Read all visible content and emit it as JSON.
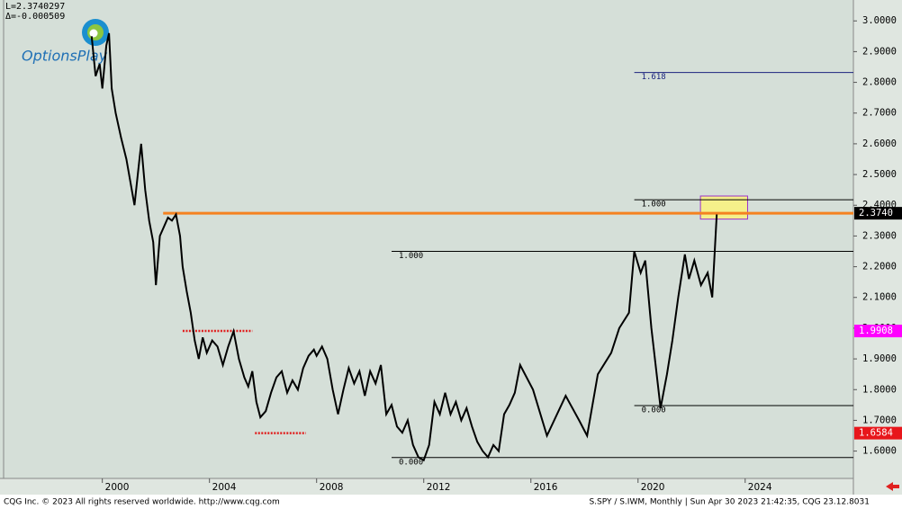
{
  "chart_data": {
    "type": "line",
    "cursor_info": [
      "L=2.3740297",
      "Δ=-0.000509"
    ],
    "logo": "OptionsPlay",
    "copyright": "CQG Inc. © 2023 All rights reserved worldwide. http://www.cqg.com",
    "status": "S.SPY / S.IWM, Monthly | Sun Apr 30 2023 21:42:35, CQG 23.12.8031",
    "color": "#000000",
    "x": [
      1999.6,
      1999.75,
      1999.9,
      2000.0,
      2000.15,
      2000.25,
      2000.35,
      2000.5,
      2000.7,
      2000.9,
      2001.1,
      2001.2,
      2001.35,
      2001.45,
      2001.6,
      2001.75,
      2001.9,
      2002.0,
      2002.15,
      2002.3,
      2002.45,
      2002.6,
      2002.75,
      2002.9,
      2003.0,
      2003.15,
      2003.3,
      2003.45,
      2003.6,
      2003.75,
      2003.9,
      2004.1,
      2004.3,
      2004.5,
      2004.7,
      2004.9,
      2005.1,
      2005.3,
      2005.45,
      2005.6,
      2005.75,
      2005.9,
      2006.1,
      2006.3,
      2006.5,
      2006.7,
      2006.9,
      2007.1,
      2007.3,
      2007.5,
      2007.7,
      2007.9,
      2008.0,
      2008.2,
      2008.4,
      2008.6,
      2008.8,
      2009.0,
      2009.2,
      2009.4,
      2009.6,
      2009.8,
      2010.0,
      2010.2,
      2010.4,
      2010.6,
      2010.8,
      2011.0,
      2011.2,
      2011.4,
      2011.6,
      2011.8,
      2012.0,
      2012.2,
      2012.4,
      2012.6,
      2012.8,
      2013.0,
      2013.2,
      2013.4,
      2013.6,
      2013.8,
      2014.0,
      2014.2,
      2014.4,
      2014.6,
      2014.8,
      2015.0,
      2015.2,
      2015.4,
      2015.6,
      2016.08,
      2016.6,
      2017.3,
      2017.8,
      2018.1,
      2018.5,
      2019.0,
      2019.3,
      2019.66,
      2019.86,
      2020.1,
      2020.27,
      2020.5,
      2020.84,
      2021.08,
      2021.28,
      2021.5,
      2021.75,
      2021.9,
      2022.1,
      2022.35,
      2022.6,
      2022.77,
      2022.94
    ],
    "values": [
      2.95,
      2.82,
      2.86,
      2.78,
      2.92,
      2.96,
      2.78,
      2.7,
      2.62,
      2.55,
      2.45,
      2.4,
      2.52,
      2.6,
      2.45,
      2.35,
      2.28,
      2.14,
      2.3,
      2.33,
      2.36,
      2.35,
      2.37,
      2.3,
      2.2,
      2.12,
      2.05,
      1.96,
      1.9,
      1.97,
      1.92,
      1.96,
      1.94,
      1.88,
      1.94,
      1.99,
      1.9,
      1.84,
      1.81,
      1.86,
      1.76,
      1.71,
      1.73,
      1.79,
      1.84,
      1.86,
      1.79,
      1.83,
      1.8,
      1.87,
      1.91,
      1.93,
      1.91,
      1.94,
      1.9,
      1.8,
      1.72,
      1.8,
      1.87,
      1.82,
      1.86,
      1.78,
      1.86,
      1.82,
      1.88,
      1.72,
      1.75,
      1.68,
      1.66,
      1.7,
      1.62,
      1.58,
      1.57,
      1.62,
      1.76,
      1.72,
      1.79,
      1.72,
      1.76,
      1.7,
      1.74,
      1.68,
      1.63,
      1.6,
      1.58,
      1.62,
      1.6,
      1.72,
      1.75,
      1.79,
      1.88,
      1.8,
      1.65,
      1.78,
      1.7,
      1.65,
      1.85,
      1.92,
      2.0,
      2.05,
      2.25,
      2.18,
      2.22,
      2.0,
      1.74,
      1.85,
      1.96,
      2.1,
      2.24,
      2.16,
      2.22,
      2.14,
      2.18,
      2.1,
      2.37
    ],
    "xlim": [
      1996.18,
      2028.04
    ],
    "ylim": [
      1.511,
      3.068
    ],
    "xticks": [
      2000,
      2004,
      2008,
      2012,
      2016,
      2020,
      2024
    ],
    "yticks": [
      {
        "value": 1.6,
        "label": "1.6000"
      },
      {
        "value": 1.7,
        "label": "1.7000"
      },
      {
        "value": 1.8,
        "label": "1.8000"
      },
      {
        "value": 1.9,
        "label": "1.9000"
      },
      {
        "value": 2.0,
        "label": "2.0000"
      },
      {
        "value": 2.1,
        "label": "2.1000"
      },
      {
        "value": 2.2,
        "label": "2.2000"
      },
      {
        "value": 2.3,
        "label": "2.3000"
      },
      {
        "value": 2.4,
        "label": "2.4000"
      },
      {
        "value": 2.5,
        "label": "2.5000"
      },
      {
        "value": 2.6,
        "label": "2.6000"
      },
      {
        "value": 2.7,
        "label": "2.7000"
      },
      {
        "value": 2.8,
        "label": "2.8000"
      },
      {
        "value": 2.9,
        "label": "2.9000"
      },
      {
        "value": 3.0,
        "label": "3.0000"
      }
    ],
    "levels": [
      {
        "label": "1.618",
        "value": 2.832,
        "from": 2019.86,
        "color": "#1a237e"
      },
      {
        "label": "1.000",
        "value": 2.418,
        "from": 2019.86,
        "color": "#000000"
      },
      {
        "label": "1.000",
        "value": 2.25,
        "from": 2010.8,
        "color": "#000000"
      },
      {
        "label": "0.000",
        "value": 1.748,
        "from": 2019.86,
        "color": "#000000"
      },
      {
        "label": "0.000",
        "value": 1.579,
        "from": 2010.8,
        "color": "#000000"
      }
    ],
    "markers": [
      {
        "label": "2.3740",
        "value": 2.374,
        "from": 2002.27,
        "color": "#f58220",
        "text_color": "#ffffff",
        "box": "#000000",
        "style": "solid"
      },
      {
        "label": "1.9908",
        "value": 1.9908,
        "from": 2003.0,
        "to": 2005.6,
        "color": "#e0201f",
        "text_color": "#ffffff",
        "box": "#ff00ff",
        "style": "dotted"
      },
      {
        "label": "1.6584",
        "value": 1.6584,
        "from": 2005.7,
        "to": 2007.6,
        "color": "#e0201f",
        "text_color": "#ffffff",
        "box": "#e8161b",
        "style": "dotted"
      }
    ],
    "highlight": {
      "x": [
        2022.33,
        2024.09
      ],
      "y": [
        2.355,
        2.43
      ],
      "color": "#f5f08a"
    }
  }
}
